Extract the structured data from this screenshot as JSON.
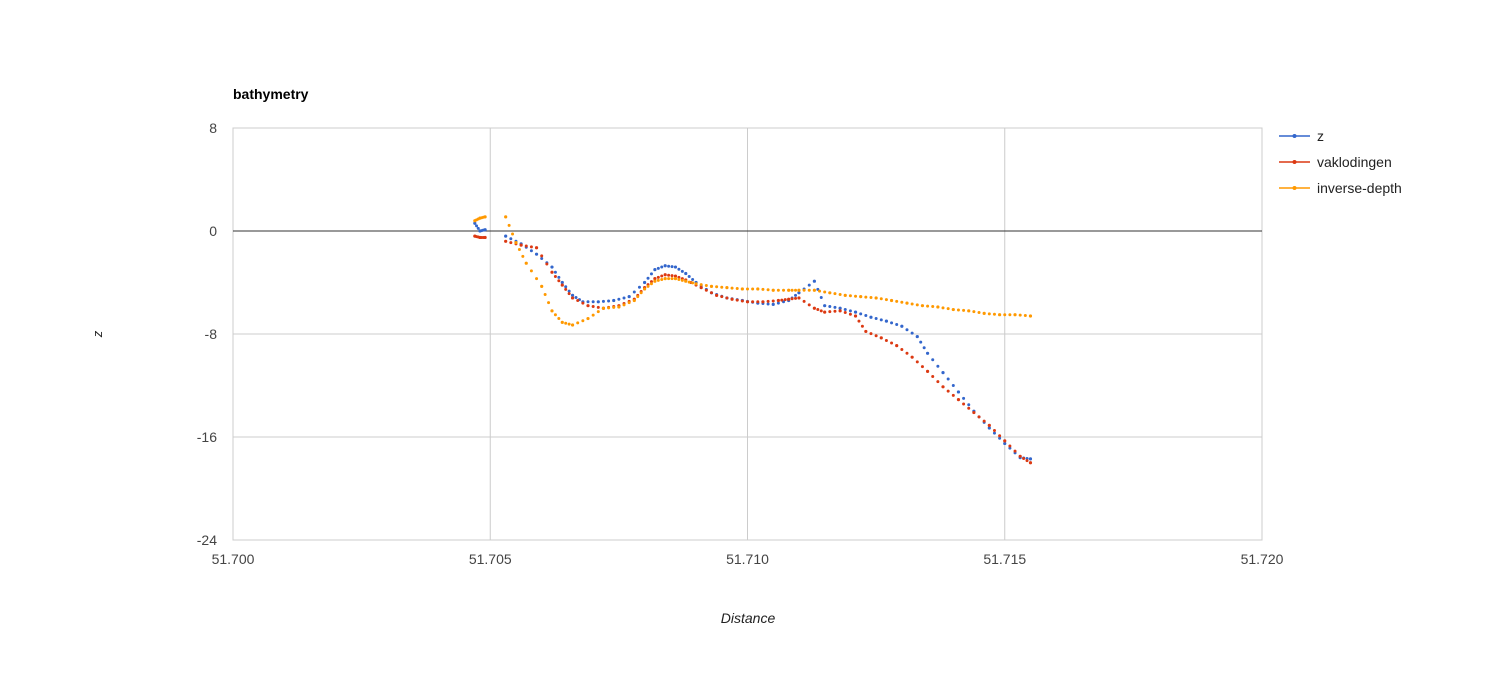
{
  "chart_data": {
    "type": "line",
    "title": "bathymetry",
    "xlabel": "Distance",
    "ylabel": "z",
    "xlim": [
      51.7,
      51.72
    ],
    "ylim": [
      -24,
      8
    ],
    "x_ticks": [
      "51.700",
      "51.705",
      "51.710",
      "51.715",
      "51.720"
    ],
    "y_ticks": [
      "8",
      "0",
      "-8",
      "-16",
      "-24"
    ],
    "grid": true,
    "legend_position": "right",
    "colors": {
      "z": "#3366cc",
      "vaklodingen": "#dc3912",
      "inverse-depth": "#ff9900"
    },
    "series": [
      {
        "name": "z",
        "color": "#3366cc",
        "points": [
          [
            51.7047,
            0.6
          ],
          [
            51.7048,
            0.0
          ],
          [
            51.7049,
            0.1
          ],
          [
            51.7053,
            -0.4
          ],
          [
            51.7056,
            -1.0
          ],
          [
            51.7059,
            -1.8
          ],
          [
            51.7062,
            -2.8
          ],
          [
            51.7064,
            -4.0
          ],
          [
            51.7066,
            -5.0
          ],
          [
            51.7068,
            -5.5
          ],
          [
            51.7071,
            -5.5
          ],
          [
            51.7074,
            -5.4
          ],
          [
            51.7077,
            -5.1
          ],
          [
            51.708,
            -4.0
          ],
          [
            51.7082,
            -3.0
          ],
          [
            51.7084,
            -2.7
          ],
          [
            51.7086,
            -2.8
          ],
          [
            51.7088,
            -3.3
          ],
          [
            51.709,
            -4.0
          ],
          [
            51.7093,
            -4.8
          ],
          [
            51.7096,
            -5.2
          ],
          [
            51.7099,
            -5.4
          ],
          [
            51.7102,
            -5.6
          ],
          [
            51.7105,
            -5.7
          ],
          [
            51.7108,
            -5.4
          ],
          [
            51.711,
            -4.8
          ],
          [
            51.7113,
            -3.9
          ],
          [
            51.7115,
            -5.8
          ],
          [
            51.7118,
            -6.0
          ],
          [
            51.7121,
            -6.3
          ],
          [
            51.7124,
            -6.7
          ],
          [
            51.7127,
            -7.0
          ],
          [
            51.713,
            -7.4
          ],
          [
            51.7133,
            -8.2
          ],
          [
            51.7135,
            -9.5
          ],
          [
            51.7138,
            -11.0
          ],
          [
            51.7141,
            -12.5
          ],
          [
            51.7144,
            -14.0
          ],
          [
            51.7147,
            -15.3
          ],
          [
            51.715,
            -16.5
          ],
          [
            51.7153,
            -17.6
          ],
          [
            51.7155,
            -17.7
          ]
        ]
      },
      {
        "name": "vaklodingen",
        "color": "#dc3912",
        "points": [
          [
            51.7047,
            -0.4
          ],
          [
            51.7048,
            -0.5
          ],
          [
            51.7049,
            -0.5
          ],
          [
            51.7053,
            -0.8
          ],
          [
            51.7056,
            -1.1
          ],
          [
            51.7059,
            -1.3
          ],
          [
            51.7062,
            -3.2
          ],
          [
            51.7064,
            -4.2
          ],
          [
            51.7066,
            -5.2
          ],
          [
            51.7069,
            -5.8
          ],
          [
            51.7072,
            -6.0
          ],
          [
            51.7075,
            -5.8
          ],
          [
            51.7078,
            -5.3
          ],
          [
            51.708,
            -4.4
          ],
          [
            51.7082,
            -3.7
          ],
          [
            51.7084,
            -3.4
          ],
          [
            51.7086,
            -3.5
          ],
          [
            51.7088,
            -3.8
          ],
          [
            51.7091,
            -4.4
          ],
          [
            51.7094,
            -5.0
          ],
          [
            51.7097,
            -5.3
          ],
          [
            51.71,
            -5.5
          ],
          [
            51.7103,
            -5.5
          ],
          [
            51.7106,
            -5.4
          ],
          [
            51.7108,
            -5.3
          ],
          [
            51.711,
            -5.2
          ],
          [
            51.7113,
            -6.0
          ],
          [
            51.7115,
            -6.3
          ],
          [
            51.7118,
            -6.2
          ],
          [
            51.7121,
            -6.6
          ],
          [
            51.7123,
            -7.8
          ],
          [
            51.7126,
            -8.3
          ],
          [
            51.7129,
            -8.9
          ],
          [
            51.7132,
            -9.8
          ],
          [
            51.7135,
            -10.9
          ],
          [
            51.7138,
            -12.1
          ],
          [
            51.7141,
            -13.1
          ],
          [
            51.7144,
            -14.1
          ],
          [
            51.7147,
            -15.1
          ],
          [
            51.715,
            -16.3
          ],
          [
            51.7153,
            -17.5
          ],
          [
            51.7155,
            -18.0
          ]
        ]
      },
      {
        "name": "inverse-depth",
        "color": "#ff9900",
        "points": [
          [
            51.7047,
            0.8
          ],
          [
            51.7048,
            1.0
          ],
          [
            51.7049,
            1.1
          ],
          [
            51.7053,
            1.1
          ],
          [
            51.7055,
            -0.9
          ],
          [
            51.7057,
            -2.5
          ],
          [
            51.706,
            -4.3
          ],
          [
            51.7062,
            -6.2
          ],
          [
            51.7064,
            -7.1
          ],
          [
            51.7066,
            -7.3
          ],
          [
            51.7069,
            -6.8
          ],
          [
            51.7072,
            -6.0
          ],
          [
            51.7075,
            -5.9
          ],
          [
            51.7078,
            -5.4
          ],
          [
            51.708,
            -4.5
          ],
          [
            51.7082,
            -3.9
          ],
          [
            51.7084,
            -3.7
          ],
          [
            51.7086,
            -3.7
          ],
          [
            51.7088,
            -3.9
          ],
          [
            51.709,
            -4.1
          ],
          [
            51.7093,
            -4.3
          ],
          [
            51.7096,
            -4.4
          ],
          [
            51.7099,
            -4.5
          ],
          [
            51.7102,
            -4.5
          ],
          [
            51.7105,
            -4.6
          ],
          [
            51.7108,
            -4.6
          ],
          [
            51.711,
            -4.6
          ],
          [
            51.7113,
            -4.6
          ],
          [
            51.7116,
            -4.8
          ],
          [
            51.7119,
            -5.0
          ],
          [
            51.7122,
            -5.1
          ],
          [
            51.7125,
            -5.2
          ],
          [
            51.7128,
            -5.4
          ],
          [
            51.7131,
            -5.6
          ],
          [
            51.7134,
            -5.8
          ],
          [
            51.7137,
            -5.9
          ],
          [
            51.714,
            -6.1
          ],
          [
            51.7143,
            -6.2
          ],
          [
            51.7146,
            -6.4
          ],
          [
            51.7149,
            -6.5
          ],
          [
            51.7152,
            -6.5
          ],
          [
            51.7155,
            -6.6
          ]
        ]
      }
    ]
  }
}
